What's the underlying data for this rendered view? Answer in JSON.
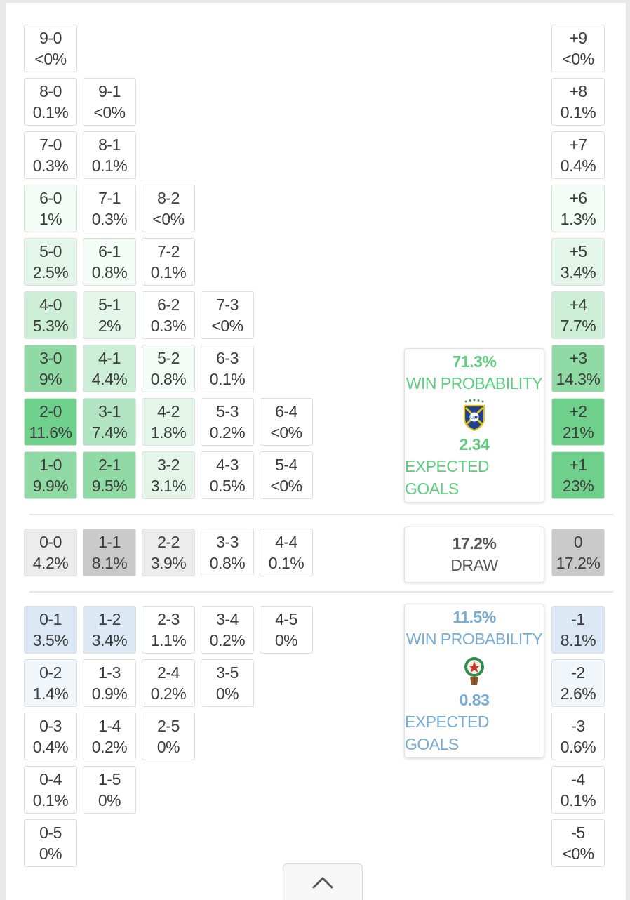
{
  "colors": {
    "home_win": "#5fcc7f",
    "away_win": "#78acd4",
    "draw_text": "#555555",
    "cell_border": "#dedede",
    "green_shades": [
      "#ffffff",
      "#f3fcf6",
      "#e3f6e9",
      "#cdeed7",
      "#b1e5c1",
      "#90dba5",
      "#6fd08c"
    ],
    "gray_shades": [
      "#ffffff",
      "#ececec",
      "#cacaca"
    ],
    "blue_shades": [
      "#ffffff",
      "#f1f6fb",
      "#dce9f5"
    ]
  },
  "home_scores": [
    {
      "score": "9-0",
      "prob": "<0%",
      "shade": 0
    },
    {
      "score": "8-0",
      "prob": "0.1%",
      "shade": 0
    },
    {
      "score": "9-1",
      "prob": "<0%",
      "shade": 0
    },
    {
      "score": "7-0",
      "prob": "0.3%",
      "shade": 0
    },
    {
      "score": "8-1",
      "prob": "0.1%",
      "shade": 0
    },
    {
      "score": "6-0",
      "prob": "1%",
      "shade": 1
    },
    {
      "score": "7-1",
      "prob": "0.3%",
      "shade": 0
    },
    {
      "score": "8-2",
      "prob": "<0%",
      "shade": 0
    },
    {
      "score": "5-0",
      "prob": "2.5%",
      "shade": 2
    },
    {
      "score": "6-1",
      "prob": "0.8%",
      "shade": 1
    },
    {
      "score": "7-2",
      "prob": "0.1%",
      "shade": 0
    },
    {
      "score": "4-0",
      "prob": "5.3%",
      "shade": 3
    },
    {
      "score": "5-1",
      "prob": "2%",
      "shade": 2
    },
    {
      "score": "6-2",
      "prob": "0.3%",
      "shade": 0
    },
    {
      "score": "7-3",
      "prob": "<0%",
      "shade": 0
    },
    {
      "score": "3-0",
      "prob": "9%",
      "shade": 5
    },
    {
      "score": "4-1",
      "prob": "4.4%",
      "shade": 3
    },
    {
      "score": "5-2",
      "prob": "0.8%",
      "shade": 1
    },
    {
      "score": "6-3",
      "prob": "0.1%",
      "shade": 0
    },
    {
      "score": "2-0",
      "prob": "11.6%",
      "shade": 6
    },
    {
      "score": "3-1",
      "prob": "7.4%",
      "shade": 4
    },
    {
      "score": "4-2",
      "prob": "1.8%",
      "shade": 2
    },
    {
      "score": "5-3",
      "prob": "0.2%",
      "shade": 0
    },
    {
      "score": "6-4",
      "prob": "<0%",
      "shade": 0
    },
    {
      "score": "1-0",
      "prob": "9.9%",
      "shade": 5
    },
    {
      "score": "2-1",
      "prob": "9.5%",
      "shade": 5
    },
    {
      "score": "3-2",
      "prob": "3.1%",
      "shade": 2
    },
    {
      "score": "4-3",
      "prob": "0.5%",
      "shade": 0
    },
    {
      "score": "5-4",
      "prob": "<0%",
      "shade": 0
    }
  ],
  "home_margins": [
    {
      "margin": "+9",
      "prob": "<0%",
      "shade": 0
    },
    {
      "margin": "+8",
      "prob": "0.1%",
      "shade": 0
    },
    {
      "margin": "+7",
      "prob": "0.4%",
      "shade": 0
    },
    {
      "margin": "+6",
      "prob": "1.3%",
      "shade": 1
    },
    {
      "margin": "+5",
      "prob": "3.4%",
      "shade": 2
    },
    {
      "margin": "+4",
      "prob": "7.7%",
      "shade": 3
    },
    {
      "margin": "+3",
      "prob": "14.3%",
      "shade": 5
    },
    {
      "margin": "+2",
      "prob": "21%",
      "shade": 6
    },
    {
      "margin": "+1",
      "prob": "23%",
      "shade": 6
    }
  ],
  "home_card": {
    "win_pct": "71.3%",
    "win_label": "WIN PROBABILITY",
    "crest_icon": "brazil-cbf-crest",
    "crest_text": "CBF",
    "xg": "2.34",
    "xg_label": "EXPECTED GOALS"
  },
  "draw_scores": [
    {
      "score": "0-0",
      "prob": "4.2%",
      "shade": 1
    },
    {
      "score": "1-1",
      "prob": "8.1%",
      "shade": 2
    },
    {
      "score": "2-2",
      "prob": "3.9%",
      "shade": 1
    },
    {
      "score": "3-3",
      "prob": "0.8%",
      "shade": 0
    },
    {
      "score": "4-4",
      "prob": "0.1%",
      "shade": 0
    }
  ],
  "draw_margin": {
    "margin": "0",
    "prob": "17.2%",
    "shade": 2
  },
  "draw_card": {
    "pct": "17.2%",
    "label": "DRAW"
  },
  "away_scores": [
    {
      "score": "0-1",
      "prob": "3.5%",
      "shade": 2
    },
    {
      "score": "1-2",
      "prob": "3.4%",
      "shade": 2
    },
    {
      "score": "2-3",
      "prob": "1.1%",
      "shade": 0
    },
    {
      "score": "3-4",
      "prob": "0.2%",
      "shade": 0
    },
    {
      "score": "4-5",
      "prob": "0%",
      "shade": 0
    },
    {
      "score": "0-2",
      "prob": "1.4%",
      "shade": 1
    },
    {
      "score": "1-3",
      "prob": "0.9%",
      "shade": 0
    },
    {
      "score": "2-4",
      "prob": "0.2%",
      "shade": 0
    },
    {
      "score": "3-5",
      "prob": "0%",
      "shade": 0
    },
    {
      "score": "0-3",
      "prob": "0.4%",
      "shade": 0
    },
    {
      "score": "1-4",
      "prob": "0.2%",
      "shade": 0
    },
    {
      "score": "2-5",
      "prob": "0%",
      "shade": 0
    },
    {
      "score": "0-4",
      "prob": "0.1%",
      "shade": 0
    },
    {
      "score": "1-5",
      "prob": "0%",
      "shade": 0
    },
    {
      "score": "0-5",
      "prob": "0%",
      "shade": 0
    }
  ],
  "away_margins": [
    {
      "margin": "-1",
      "prob": "8.1%",
      "shade": 2
    },
    {
      "margin": "-2",
      "prob": "2.6%",
      "shade": 1
    },
    {
      "margin": "-3",
      "prob": "0.6%",
      "shade": 0
    },
    {
      "margin": "-4",
      "prob": "0.1%",
      "shade": 0
    },
    {
      "margin": "-5",
      "prob": "<0%",
      "shade": 0
    }
  ],
  "away_card": {
    "win_pct": "11.5%",
    "win_label": "WIN PROBABILITY",
    "crest_icon": "morocco-frmf-crest",
    "xg": "0.83",
    "xg_label": "EXPECTED GOALS"
  },
  "collapse_button": {
    "icon": "chevron-up-icon"
  }
}
